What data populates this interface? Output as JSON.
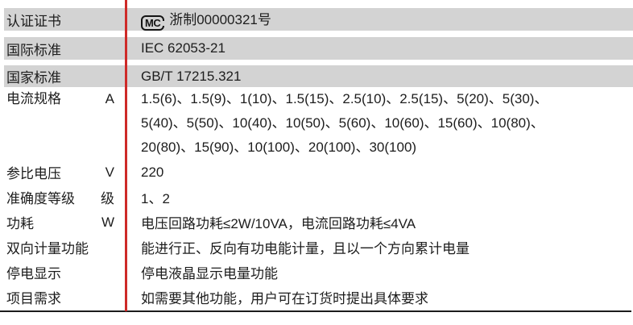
{
  "colors": {
    "band_gray": "#d3d3d3",
    "divider_red": "#ce2a28",
    "bottom_rule": "#1c1c1c",
    "text": "#1d1d1d"
  },
  "certification_mark": {
    "icon": "mc-metrology-mark",
    "letters": "MC"
  },
  "table": {
    "rows": [
      {
        "label": "认证证书",
        "unit": "",
        "content": "浙制00000321号"
      },
      {
        "label": "国际标准",
        "unit": "",
        "content": "IEC 62053-21"
      },
      {
        "label": "国家标准",
        "unit": "",
        "content": "GB/T 17215.321"
      },
      {
        "label": "电流规格",
        "unit": "A",
        "lines": [
          "1.5(6)、1.5(9)、1(10)、1.5(15)、2.5(10)、2.5(15)、5(20)、5(30)、",
          "5(40)、5(50)、10(40)、10(50)、5(60)、10(60)、15(60)、10(80)、",
          "20(80)、15(90)、10(100)、20(100)、30(100)"
        ]
      },
      {
        "label": "参比电压",
        "unit": "V",
        "content": "220"
      },
      {
        "label": "准确度等级",
        "unit": "级",
        "content": "1、2"
      },
      {
        "label": "功耗",
        "unit": "W",
        "content": "电压回路功耗≤2W/10VA，电流回路功耗≤4VA"
      },
      {
        "label": "双向计量功能",
        "unit": "",
        "content": "能进行正、反向有功电能计量，且以一个方向累计电量"
      },
      {
        "label": "停电显示",
        "unit": "",
        "content": "停电液晶显示电量功能"
      },
      {
        "label": "项目需求",
        "unit": "",
        "content": "如需要其他功能，用户可在订货时提出具体要求"
      }
    ]
  }
}
